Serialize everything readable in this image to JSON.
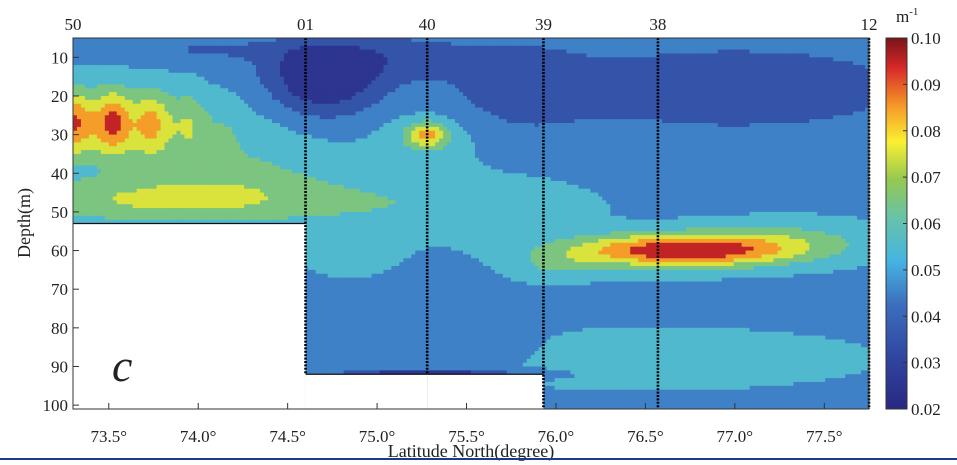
{
  "chart_data": {
    "type": "heatmap",
    "title": "",
    "xlabel": "Latitude North(degree)",
    "ylabel": "Depth(m)",
    "panel_label": "c",
    "colorbar_unit": "m-1",
    "colorbar_unit_base": "m",
    "colorbar_unit_sup": "-1",
    "xlim": [
      73.3,
      77.75
    ],
    "ylim": [
      5,
      101
    ],
    "x_ticks": [
      73.5,
      74.0,
      74.5,
      75.0,
      75.5,
      76.0,
      76.5,
      77.0,
      77.5
    ],
    "x_tick_labels": [
      "73.5°",
      "74.0°",
      "74.5°",
      "75.0°",
      "75.5°",
      "76.0°",
      "76.5°",
      "77.0°",
      "77.5°"
    ],
    "y_ticks": [
      10,
      20,
      30,
      40,
      50,
      60,
      70,
      80,
      90,
      100
    ],
    "y_tick_labels": [
      "10",
      "20",
      "30",
      "40",
      "50",
      "60",
      "70",
      "80",
      "90",
      "100"
    ],
    "colorbar": {
      "min": 0.02,
      "max": 0.1,
      "ticks": [
        0.02,
        0.03,
        0.04,
        0.05,
        0.06,
        0.07,
        0.08,
        0.09,
        0.1
      ],
      "tick_labels": [
        "0.02",
        "0.03",
        "0.04",
        "0.05",
        "0.06",
        "0.07",
        "0.08",
        "0.09",
        "0.10"
      ]
    },
    "stations": [
      {
        "name": "50",
        "lat": 73.3,
        "max_depth": 53
      },
      {
        "name": "01",
        "lat": 74.6,
        "max_depth": 92
      },
      {
        "name": "40",
        "lat": 75.28,
        "max_depth": 92
      },
      {
        "name": "39",
        "lat": 75.93,
        "max_depth": 101
      },
      {
        "name": "38",
        "lat": 76.57,
        "max_depth": 101
      },
      {
        "name": "12",
        "lat": 77.75,
        "max_depth": 101
      }
    ],
    "features": [
      {
        "lat": 73.5,
        "depth": 28,
        "value": 0.09
      },
      {
        "lat": 74.7,
        "depth": 16,
        "value": 0.025
      },
      {
        "lat": 75.28,
        "depth": 30,
        "value": 0.07
      },
      {
        "lat": 76.65,
        "depth": 60,
        "value": 0.095
      },
      {
        "lat": 75.28,
        "depth": 92,
        "value": 0.025
      }
    ]
  }
}
